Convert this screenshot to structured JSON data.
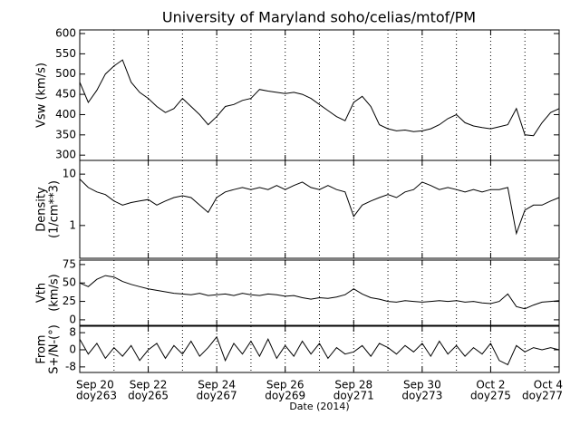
{
  "chart_data": [
    {
      "type": "line",
      "title": "University of Maryland  soho/celias/mtof/PM",
      "ylabel": [
        "Vsw (km/s)"
      ],
      "ylim": [
        287,
        609
      ],
      "yticks": [
        300,
        350,
        400,
        450,
        500,
        550,
        600
      ],
      "xlim": [
        0,
        14
      ],
      "xgrid": [
        1,
        2,
        3,
        4,
        5,
        6,
        7,
        8,
        9,
        10,
        11,
        12,
        13
      ],
      "x": [
        0,
        0.25,
        0.5,
        0.75,
        1,
        1.25,
        1.5,
        1.75,
        2,
        2.25,
        2.5,
        2.75,
        3,
        3.25,
        3.5,
        3.75,
        4,
        4.25,
        4.5,
        4.75,
        5,
        5.25,
        5.5,
        5.75,
        6,
        6.25,
        6.5,
        6.75,
        7,
        7.25,
        7.5,
        7.75,
        8,
        8.25,
        8.5,
        8.75,
        9,
        9.25,
        9.5,
        9.75,
        10,
        10.25,
        10.5,
        10.75,
        11,
        11.25,
        11.5,
        11.75,
        12,
        12.25,
        12.5,
        12.75,
        13,
        13.25,
        13.5,
        13.75,
        14
      ],
      "values": [
        480,
        430,
        460,
        500,
        520,
        535,
        480,
        455,
        440,
        420,
        405,
        415,
        440,
        420,
        400,
        375,
        395,
        420,
        425,
        435,
        440,
        462,
        458,
        455,
        452,
        455,
        450,
        440,
        425,
        410,
        395,
        385,
        430,
        445,
        420,
        375,
        365,
        360,
        362,
        358,
        360,
        365,
        375,
        390,
        400,
        380,
        372,
        368,
        365,
        370,
        375,
        415,
        350,
        348,
        380,
        405,
        415
      ],
      "color": "#000000"
    },
    {
      "type": "line",
      "ylabel": [
        "Density",
        "(1/cm**3)"
      ],
      "ylog": true,
      "ylim": [
        0.23,
        18.5
      ],
      "yticks": [
        1,
        10
      ],
      "xlim": [
        0,
        14
      ],
      "x": [
        0,
        0.25,
        0.5,
        0.75,
        1,
        1.25,
        1.5,
        1.75,
        2,
        2.25,
        2.5,
        2.75,
        3,
        3.25,
        3.5,
        3.75,
        4,
        4.25,
        4.5,
        4.75,
        5,
        5.25,
        5.5,
        5.75,
        6,
        6.25,
        6.5,
        6.75,
        7,
        7.25,
        7.5,
        7.75,
        8,
        8.25,
        8.5,
        8.75,
        9,
        9.25,
        9.5,
        9.75,
        10,
        10.25,
        10.5,
        10.75,
        11,
        11.25,
        11.5,
        11.75,
        12,
        12.25,
        12.5,
        12.75,
        13,
        13.25,
        13.5,
        13.75,
        14
      ],
      "values": [
        8,
        5.5,
        4.5,
        4,
        3,
        2.5,
        2.8,
        3,
        3.2,
        2.5,
        3,
        3.5,
        3.8,
        3.5,
        2.5,
        1.8,
        3.5,
        4.5,
        5,
        5.5,
        5,
        5.5,
        5,
        6,
        5,
        6,
        7,
        5.5,
        5,
        6,
        5,
        4.5,
        1.5,
        2.5,
        3,
        3.5,
        4,
        3.5,
        4.5,
        5,
        7,
        6,
        5,
        5.5,
        5,
        4.5,
        5,
        4.5,
        5,
        5,
        5.5,
        0.7,
        2,
        2.5,
        2.5,
        3,
        3.5
      ],
      "color": "#000000"
    },
    {
      "type": "line",
      "ylabel": [
        "Vth",
        "(km/s)"
      ],
      "ylim": [
        -7.5,
        81
      ],
      "yticks": [
        0,
        25,
        50,
        75
      ],
      "xlim": [
        0,
        14
      ],
      "x": [
        0,
        0.25,
        0.5,
        0.75,
        1,
        1.25,
        1.5,
        1.75,
        2,
        2.25,
        2.5,
        2.75,
        3,
        3.25,
        3.5,
        3.75,
        4,
        4.25,
        4.5,
        4.75,
        5,
        5.25,
        5.5,
        5.75,
        6,
        6.25,
        6.5,
        6.75,
        7,
        7.25,
        7.5,
        7.75,
        8,
        8.25,
        8.5,
        8.75,
        9,
        9.25,
        9.5,
        9.75,
        10,
        10.25,
        10.5,
        10.75,
        11,
        11.25,
        11.5,
        11.75,
        12,
        12.25,
        12.5,
        12.75,
        13,
        13.25,
        13.5,
        13.75,
        14
      ],
      "values": [
        50,
        45,
        55,
        60,
        58,
        52,
        48,
        45,
        42,
        40,
        38,
        36,
        35,
        34,
        36,
        33,
        34,
        35,
        33,
        36,
        34,
        33,
        35,
        34,
        32,
        33,
        30,
        28,
        30,
        29,
        31,
        34,
        42,
        35,
        30,
        28,
        25,
        24,
        26,
        25,
        24,
        25,
        26,
        25,
        26,
        24,
        25,
        23,
        22,
        25,
        35,
        18,
        15,
        20,
        24,
        25,
        26
      ],
      "color": "#000000"
    },
    {
      "type": "line",
      "ylabel": [
        "From",
        "S+/N-(°)"
      ],
      "xlabel": "Date (2014)",
      "ylim": [
        -10.6,
        11
      ],
      "yticks": [
        -8,
        0,
        8
      ],
      "xlim": [
        0,
        14
      ],
      "xticks": [
        {
          "value": 0,
          "label": "Sep 20"
        },
        {
          "value": 2,
          "label": "Sep 22"
        },
        {
          "value": 4,
          "label": "Sep 24"
        },
        {
          "value": 6,
          "label": "Sep 26"
        },
        {
          "value": 8,
          "label": "Sep 28"
        },
        {
          "value": 10,
          "label": "Sep 30"
        },
        {
          "value": 12,
          "label": "Oct 2"
        },
        {
          "value": 14,
          "label": "Oct 4"
        }
      ],
      "xtick_sublabels": [
        "doy263",
        "doy265",
        "doy267",
        "doy269",
        "doy271",
        "doy273",
        "doy275",
        "doy277"
      ],
      "x": [
        0,
        0.25,
        0.5,
        0.75,
        1,
        1.25,
        1.5,
        1.75,
        2,
        2.25,
        2.5,
        2.75,
        3,
        3.25,
        3.5,
        3.75,
        4,
        4.25,
        4.5,
        4.75,
        5,
        5.25,
        5.5,
        5.75,
        6,
        6.25,
        6.5,
        6.75,
        7,
        7.25,
        7.5,
        7.75,
        8,
        8.25,
        8.5,
        8.75,
        9,
        9.25,
        9.5,
        9.75,
        10,
        10.25,
        10.5,
        10.75,
        11,
        11.25,
        11.5,
        11.75,
        12,
        12.25,
        12.5,
        12.75,
        13,
        13.25,
        13.5,
        13.75,
        14
      ],
      "values": [
        5,
        -2,
        3,
        -4,
        1,
        -3,
        2,
        -5,
        0,
        3,
        -4,
        2,
        -2,
        4,
        -3,
        1,
        6,
        -5,
        3,
        -2,
        4,
        -3,
        5,
        -4,
        2,
        -3,
        4,
        -2,
        3,
        -4,
        1,
        -2,
        -1,
        2,
        -3,
        3,
        1,
        -2,
        2,
        -1,
        3,
        -3,
        4,
        -2,
        2,
        -3,
        1,
        -2,
        3,
        -5,
        -7,
        2,
        -1,
        1,
        0,
        1,
        0
      ],
      "color": "#000000"
    }
  ]
}
